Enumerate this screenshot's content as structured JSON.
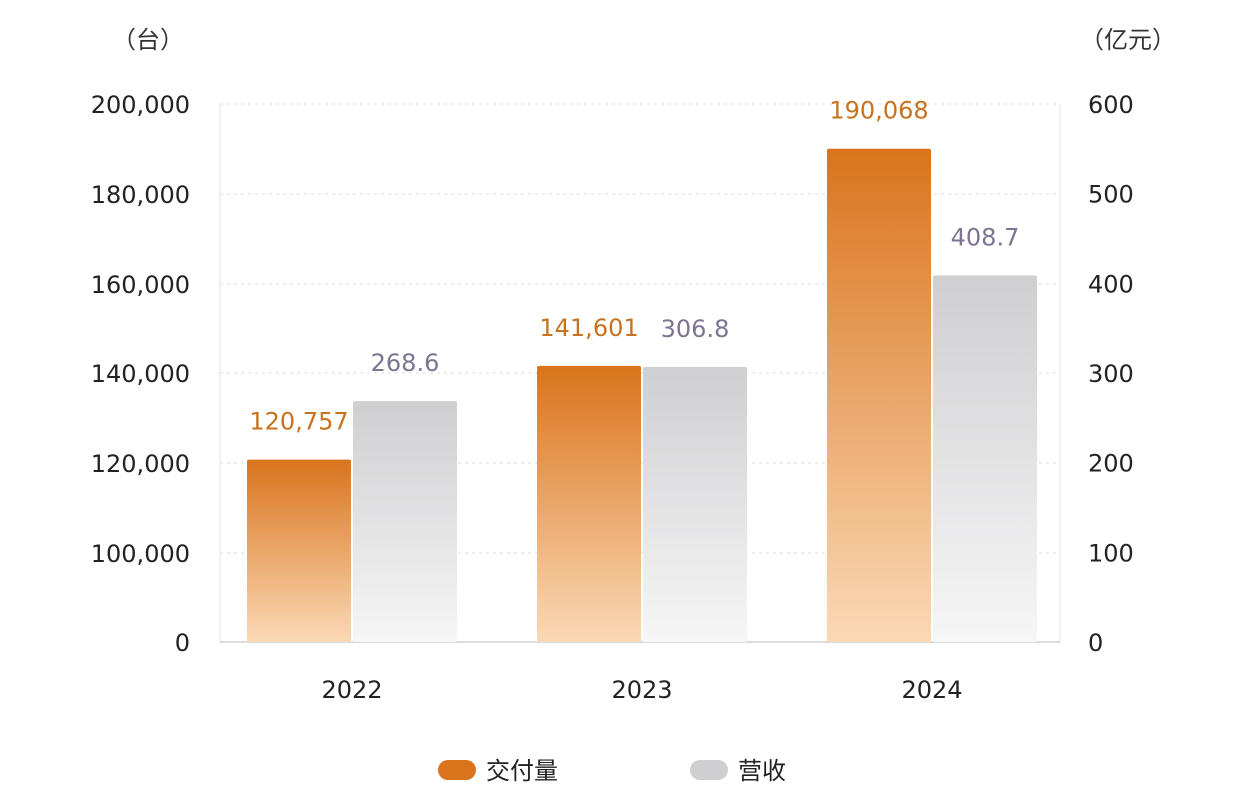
{
  "chart_data": {
    "type": "bar",
    "categories": [
      "2022",
      "2023",
      "2024"
    ],
    "series": [
      {
        "name": "交付量",
        "axis": "left",
        "values": [
          120757,
          141601,
          190068
        ],
        "labels": [
          "120,757",
          "141,601",
          "190,068"
        ],
        "color": "#d9741c",
        "color_light": "#fbd9b6",
        "label_color": "#c8721d"
      },
      {
        "name": "营收",
        "axis": "right",
        "values": [
          268.6,
          306.8,
          408.7
        ],
        "labels": [
          "268.6",
          "306.8",
          "408.7"
        ],
        "color": "#cfcfd1",
        "color_light": "#f6f6f7",
        "label_color": "#7e7492"
      }
    ],
    "left_axis": {
      "unit": "（台）",
      "ylim": [
        0,
        200000
      ],
      "ticks": [
        0,
        100000,
        120000,
        140000,
        160000,
        180000,
        200000
      ],
      "tick_labels": [
        "0",
        "100,000",
        "120,000",
        "140,000",
        "160,000",
        "180,000",
        "200,000"
      ]
    },
    "right_axis": {
      "unit": "（亿元）",
      "ylim": [
        0,
        600
      ],
      "ticks": [
        0,
        100,
        200,
        300,
        400,
        500,
        600
      ],
      "tick_labels": [
        "0",
        "100",
        "200",
        "300",
        "400",
        "500",
        "600"
      ]
    },
    "grid": true,
    "legend_position": "bottom"
  }
}
